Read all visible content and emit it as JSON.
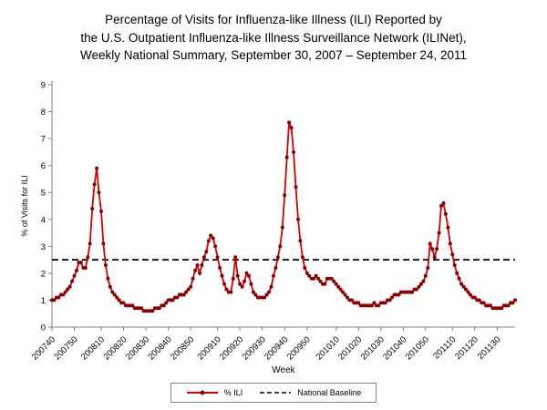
{
  "title_lines": [
    "Percentage of Visits for Influenza-like Illness (ILI) Reported by",
    "the U.S. Outpatient Influenza-like Illness Surveillance Network (ILINet),",
    "Weekly National Summary, September 30, 2007 – September 24, 2011"
  ],
  "chart_data": {
    "type": "line",
    "title": "Percentage of Visits for Influenza-like Illness (ILI) Reported by the U.S. Outpatient Influenza-like Illness Surveillance Network (ILINet), Weekly National Summary, September 30, 2007 – September 24, 2011",
    "xlabel": "Week",
    "ylabel": "% of Visits for ILI",
    "ylim": [
      0,
      9
    ],
    "y_ticks": [
      0,
      1,
      2,
      3,
      4,
      5,
      6,
      7,
      8,
      9
    ],
    "grid": false,
    "legend_position": "bottom-center",
    "x_tick_labels": [
      "200740",
      "200750",
      "200810",
      "200820",
      "200830",
      "200840",
      "200850",
      "200910",
      "200920",
      "200930",
      "200940",
      "200950",
      "201010",
      "201020",
      "201030",
      "201040",
      "201050",
      "201110",
      "201120",
      "201130"
    ],
    "x_weeks_spec": [
      {
        "year": 2007,
        "first_week": 40,
        "last_week": 52
      },
      {
        "year": 2008,
        "first_week": 1,
        "last_week": 52
      },
      {
        "year": 2009,
        "first_week": 1,
        "last_week": 53
      },
      {
        "year": 2010,
        "first_week": 1,
        "last_week": 52
      },
      {
        "year": 2011,
        "first_week": 1,
        "last_week": 38
      }
    ],
    "series": [
      {
        "name": "% ILI",
        "type": "line-with-markers",
        "color": "#D40000",
        "marker_color": "#8B0000",
        "values": [
          1.0,
          1.0,
          1.1,
          1.1,
          1.2,
          1.2,
          1.3,
          1.4,
          1.5,
          1.7,
          1.9,
          2.1,
          2.4,
          2.4,
          2.2,
          2.2,
          2.6,
          3.1,
          4.4,
          5.3,
          5.9,
          5.0,
          4.3,
          3.1,
          2.3,
          1.8,
          1.5,
          1.3,
          1.2,
          1.1,
          1.0,
          0.9,
          0.9,
          0.8,
          0.8,
          0.8,
          0.8,
          0.7,
          0.7,
          0.7,
          0.7,
          0.6,
          0.6,
          0.6,
          0.6,
          0.6,
          0.7,
          0.7,
          0.7,
          0.8,
          0.8,
          0.9,
          1.0,
          1.0,
          1.0,
          1.1,
          1.1,
          1.2,
          1.2,
          1.2,
          1.3,
          1.4,
          1.5,
          1.8,
          2.1,
          2.3,
          2.0,
          2.3,
          2.6,
          2.8,
          3.2,
          3.4,
          3.3,
          3.0,
          2.6,
          2.2,
          1.9,
          1.6,
          1.4,
          1.3,
          1.3,
          1.8,
          2.6,
          1.9,
          1.6,
          1.5,
          1.7,
          2.0,
          1.9,
          1.6,
          1.3,
          1.2,
          1.1,
          1.1,
          1.1,
          1.1,
          1.2,
          1.3,
          1.5,
          1.9,
          2.2,
          2.6,
          3.0,
          3.7,
          4.9,
          6.3,
          7.6,
          7.4,
          6.5,
          5.2,
          4.0,
          3.2,
          2.6,
          2.2,
          2.0,
          1.9,
          1.8,
          1.8,
          1.9,
          1.8,
          1.7,
          1.6,
          1.6,
          1.8,
          1.8,
          1.8,
          1.7,
          1.6,
          1.5,
          1.4,
          1.3,
          1.2,
          1.1,
          1.0,
          1.0,
          0.9,
          0.9,
          0.9,
          0.8,
          0.8,
          0.8,
          0.8,
          0.8,
          0.8,
          0.9,
          0.8,
          0.8,
          0.9,
          0.9,
          0.9,
          1.0,
          1.0,
          1.1,
          1.2,
          1.2,
          1.2,
          1.3,
          1.3,
          1.3,
          1.3,
          1.3,
          1.3,
          1.4,
          1.4,
          1.5,
          1.6,
          1.7,
          1.9,
          2.2,
          3.1,
          2.9,
          2.6,
          2.9,
          3.5,
          4.5,
          4.6,
          4.2,
          3.7,
          3.1,
          2.7,
          2.3,
          2.0,
          1.8,
          1.6,
          1.5,
          1.4,
          1.3,
          1.2,
          1.1,
          1.1,
          1.0,
          1.0,
          0.9,
          0.9,
          0.8,
          0.8,
          0.8,
          0.7,
          0.7,
          0.7,
          0.7,
          0.7,
          0.8,
          0.8,
          0.8,
          0.9,
          0.9,
          1.0
        ]
      },
      {
        "name": "National Baseline",
        "type": "horizontal-dashed-line",
        "color": "#000000",
        "value": 2.5
      }
    ]
  }
}
